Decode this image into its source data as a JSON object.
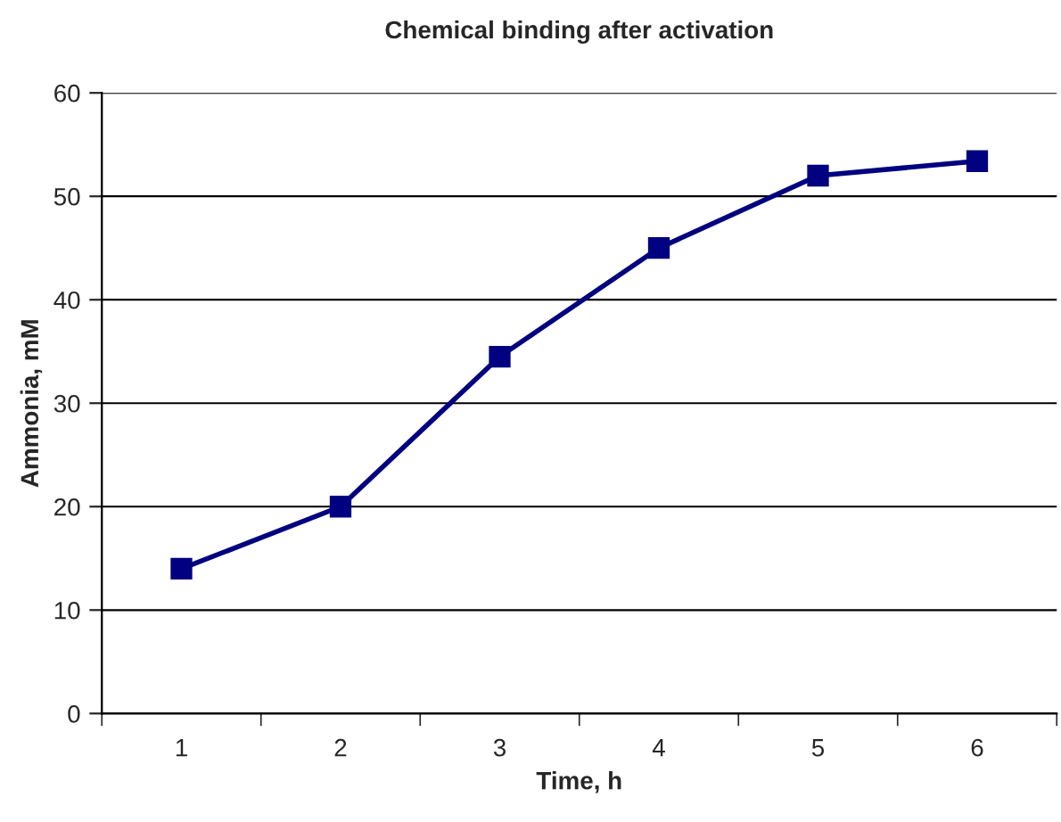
{
  "chart_data": {
    "type": "line",
    "title": "Chemical binding after activation",
    "xlabel": "Time, h",
    "ylabel": "Ammonia, mM",
    "categories": [
      "1",
      "2",
      "3",
      "4",
      "5",
      "6"
    ],
    "series": [
      {
        "color": "#000080",
        "values": [
          14,
          20,
          34.5,
          45,
          52,
          53.4
        ]
      }
    ],
    "ylim": [
      0,
      60
    ],
    "yticks": [
      0,
      10,
      20,
      30,
      40,
      50,
      60
    ],
    "grid": "y",
    "marker": "square",
    "line_style": "solid",
    "legend": false
  }
}
